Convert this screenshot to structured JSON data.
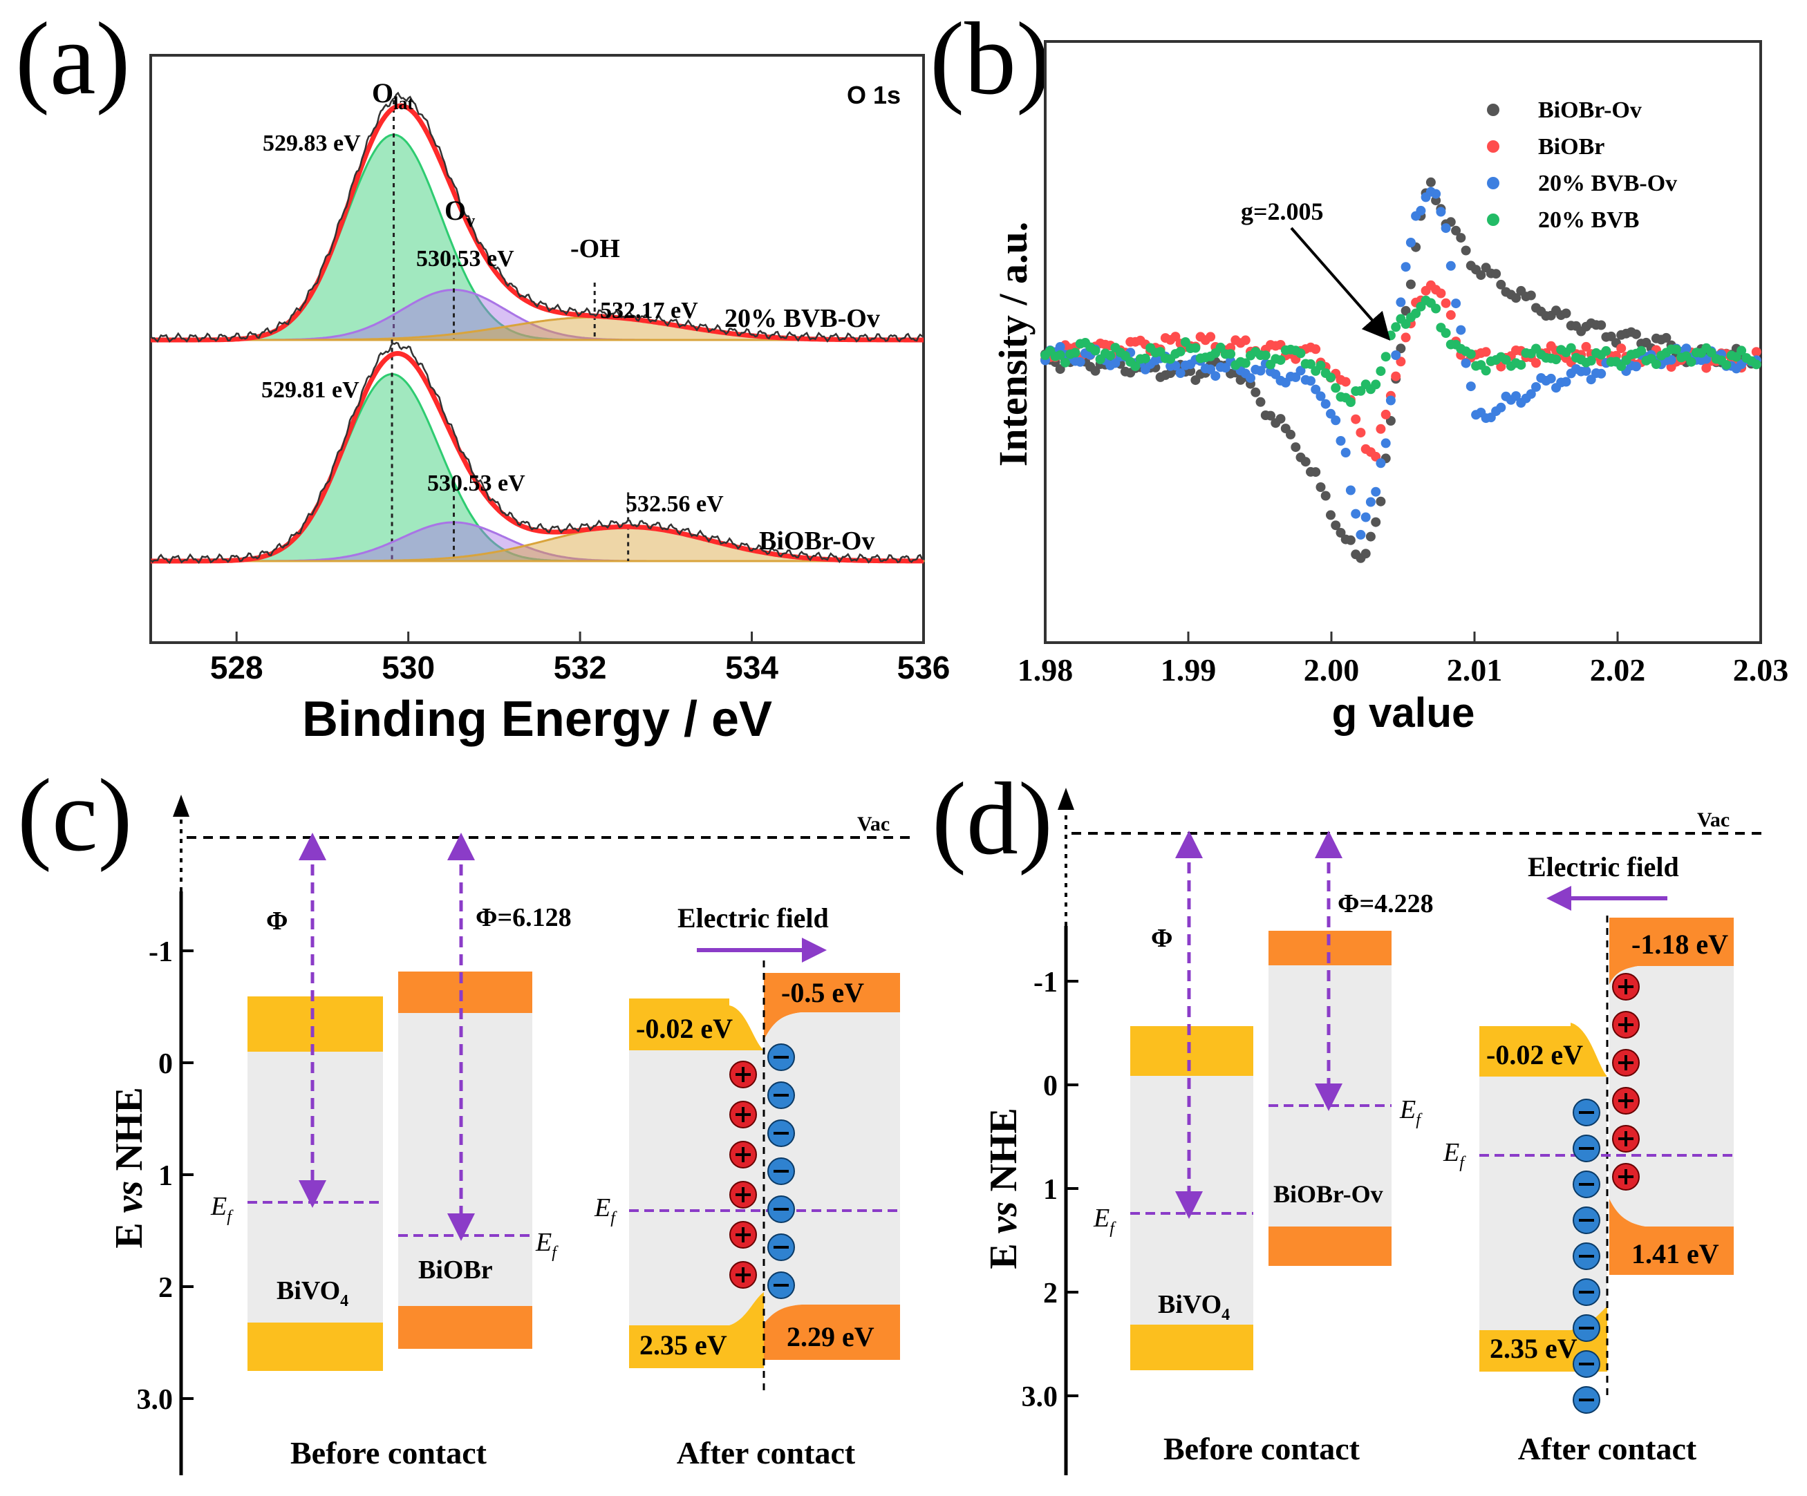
{
  "panels": {
    "a": "(a)",
    "b": "(b)",
    "c": "(c)",
    "d": "(d)"
  },
  "chart_data": [
    {
      "panel": "a",
      "type": "line",
      "title": "O 1s",
      "xlabel": "Binding Energy / eV",
      "ylabel": "",
      "xlim": [
        527,
        536
      ],
      "xticks": [
        "528",
        "530",
        "532",
        "534",
        "536"
      ],
      "spectra": [
        {
          "sample": "20% BVB-Ov",
          "components": [
            {
              "name": "Olat",
              "label_main": "O",
              "label_sub": "lat",
              "center": 529.83,
              "annotation": "529.83 eV",
              "color": "#2ecc71",
              "amplitude": 0.9,
              "sigma": 0.55
            },
            {
              "name": "Ov",
              "label_main": "O",
              "label_sub": "v",
              "center": 530.53,
              "annotation": "530.53 eV",
              "color": "#a974e6",
              "amplitude": 0.22,
              "sigma": 0.6
            },
            {
              "name": "-OH",
              "label_main": "-OH",
              "label_sub": "",
              "center": 532.17,
              "annotation": "532.17 eV",
              "color": "#d9a43c",
              "amplitude": 0.1,
              "sigma": 1.0
            }
          ]
        },
        {
          "sample": "BiOBr-Ov",
          "components": [
            {
              "name": "Olat",
              "center": 529.81,
              "annotation": "529.81 eV",
              "color": "#2ecc71",
              "amplitude": 0.82,
              "sigma": 0.55
            },
            {
              "name": "Ov",
              "center": 530.53,
              "annotation": "530.53 eV",
              "color": "#a974e6",
              "amplitude": 0.17,
              "sigma": 0.6
            },
            {
              "name": "-OH",
              "center": 532.56,
              "annotation": "532.56 eV",
              "color": "#d9a43c",
              "amplitude": 0.15,
              "sigma": 0.95
            }
          ]
        }
      ]
    },
    {
      "panel": "b",
      "type": "scatter",
      "xlabel": "g value",
      "ylabel": "Intensity / a.u.",
      "xlim": [
        1.98,
        2.03
      ],
      "xticks": [
        "1.98",
        "1.99",
        "2.00",
        "2.01",
        "2.02",
        "2.03"
      ],
      "annotation": "g=2.005",
      "series": [
        {
          "name": "BiOBr-Ov",
          "color": "#555555",
          "x": [
            1.98,
            1.985,
            1.99,
            1.993,
            1.995,
            1.998,
            2.0,
            2.002,
            2.0035,
            2.005,
            2.0065,
            2.007,
            2.008,
            2.01,
            2.013,
            2.016,
            2.02,
            2.023,
            2.025
          ],
          "y": [
            0.0,
            -0.05,
            -0.12,
            -0.05,
            -0.35,
            -0.8,
            -1.3,
            -1.75,
            -1.2,
            0.3,
            1.35,
            1.5,
            1.2,
            0.8,
            0.55,
            0.35,
            0.2,
            0.15,
            0.02
          ]
        },
        {
          "name": "BiOBr",
          "color": "#ff4d4d",
          "x": [
            1.98,
            1.985,
            1.99,
            1.993,
            1.996,
            1.999,
            2.001,
            2.003,
            2.0045,
            2.006,
            2.007,
            2.008,
            2.009,
            2.011,
            2.015,
            2.02,
            2.025,
            2.029
          ],
          "y": [
            0.05,
            0.1,
            0.15,
            0.12,
            0.08,
            0.05,
            -0.25,
            -0.9,
            -0.1,
            0.45,
            0.7,
            0.45,
            0.05,
            0.0,
            0.05,
            0.02,
            0.0,
            0.0
          ]
        },
        {
          "name": "20% BVB-Ov",
          "color": "#3d7fe0",
          "x": [
            1.98,
            1.985,
            1.99,
            1.995,
            1.999,
            2.001,
            2.002,
            2.003,
            2.004,
            2.005,
            2.006,
            2.007,
            2.008,
            2.009,
            2.01,
            2.012,
            2.015,
            2.02,
            2.025,
            2.029
          ],
          "y": [
            0.05,
            0.0,
            -0.05,
            -0.1,
            -0.2,
            -0.8,
            -1.5,
            -1.2,
            -0.5,
            0.6,
            1.3,
            1.45,
            1.1,
            0.3,
            -0.5,
            -0.4,
            -0.2,
            -0.05,
            0.05,
            -0.05
          ]
        },
        {
          "name": "20% BVB",
          "color": "#22bb66",
          "x": [
            1.98,
            1.983,
            1.986,
            1.99,
            1.994,
            1.998,
            2.0,
            2.0015,
            2.003,
            2.0045,
            2.006,
            2.007,
            2.008,
            2.009,
            2.011,
            2.015,
            2.02,
            2.025,
            2.029
          ],
          "y": [
            0.0,
            0.1,
            0.0,
            0.08,
            0.0,
            0.05,
            -0.2,
            -0.35,
            -0.2,
            0.25,
            0.45,
            0.45,
            0.25,
            0.05,
            -0.05,
            0.05,
            0.0,
            0.05,
            0.0
          ]
        }
      ]
    }
  ],
  "diagram_c": {
    "ylabel_main": "E ",
    "ylabel_italic": "vs",
    "ylabel_tail": " NHE",
    "yticks": [
      "-1",
      "0",
      "1",
      "2",
      "3.0"
    ],
    "vac": "Vac",
    "phi_left": "Φ",
    "phi_right": "Φ=6.128",
    "ef_main": "E",
    "ef_sub": "f",
    "left_material": "BiVO",
    "left_material_sub": "4",
    "right_material": "BiOBr",
    "electric_field": "Electric field",
    "cb_left": "-0.02 eV",
    "cb_right": "-0.5 eV",
    "vb_left": "2.35 eV",
    "vb_right": "2.29 eV",
    "before": "Before contact",
    "after": "After contact",
    "plus_count": 6,
    "minus_count": 7
  },
  "diagram_d": {
    "ylabel_main": "E ",
    "ylabel_italic": "vs",
    "ylabel_tail": " NHE",
    "yticks": [
      "-1",
      "0",
      "1",
      "2",
      "3.0"
    ],
    "vac": "Vac",
    "phi_left": "Φ",
    "phi_right": "Φ=4.228",
    "ef_main": "E",
    "ef_sub": "f",
    "left_material": "BiVO",
    "left_material_sub": "4",
    "right_material": "BiOBr-Ov",
    "electric_field": "Electric field",
    "cb_left": "-0.02 eV",
    "cb_right": "-1.18 eV",
    "vb_left": "2.35 eV",
    "vb_right": "1.41 eV",
    "before": "Before contact",
    "after": "After contact",
    "plus_count": 6,
    "minus_count": 9
  },
  "colors": {
    "green": "#2ecc71",
    "purple": "#a974e6",
    "orange_fit": "#d9a43c",
    "bivo4_band": "#fcbf1e",
    "biobr_band": "#fb8b2c",
    "gap": "#ebebeb",
    "dashed_purple": "#8b3cc8",
    "plus": "#e0222a",
    "minus": "#2f82d0"
  }
}
